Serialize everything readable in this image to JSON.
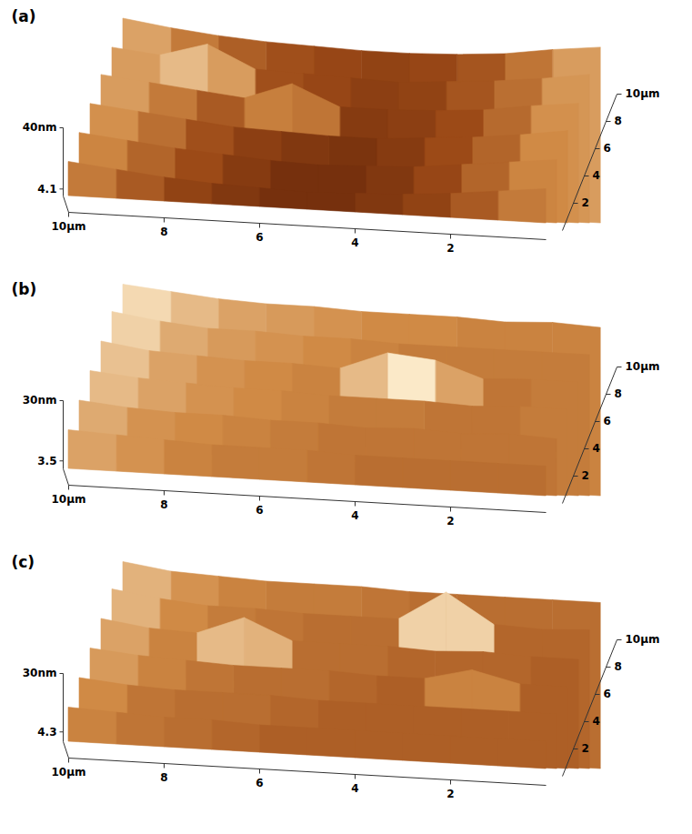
{
  "chart_data": [
    {
      "type": "surface",
      "title": "(a)",
      "x": [
        0,
        1,
        2,
        3,
        4,
        5,
        6,
        7,
        8,
        9,
        10
      ],
      "y": [
        0,
        2,
        4,
        6,
        8,
        10
      ],
      "z": [
        [
          20,
          17,
          14,
          12,
          11,
          10,
          11,
          12,
          14,
          17,
          20
        ],
        [
          21,
          18,
          15,
          12,
          11,
          10,
          11,
          13,
          15,
          18,
          21
        ],
        [
          22,
          18,
          15,
          13,
          11,
          11,
          12,
          13,
          16,
          19,
          22
        ],
        [
          22,
          19,
          15,
          13,
          12,
          12,
          24,
          14,
          17,
          20,
          23
        ],
        [
          23,
          19,
          16,
          14,
          12,
          13,
          14,
          15,
          28,
          20,
          23
        ],
        [
          23,
          20,
          16,
          14,
          13,
          13,
          14,
          15,
          17,
          20,
          24
        ]
      ],
      "xlim": [
        0,
        10
      ],
      "ylim": [
        0,
        10
      ],
      "zlim": [
        0,
        40
      ],
      "xticks": [
        2,
        4,
        6,
        8,
        {
          "value": 10,
          "label": "10µm"
        }
      ],
      "yticks": [
        2,
        4,
        6,
        8,
        {
          "value": 10,
          "label": "10µm"
        }
      ],
      "zticks": [
        4.1,
        {
          "value": 40,
          "label": "40nm"
        }
      ]
    },
    {
      "type": "surface",
      "title": "(b)",
      "x": [
        0,
        1,
        2,
        3,
        4,
        5,
        6,
        7,
        8,
        9,
        10
      ],
      "y": [
        0,
        2,
        4,
        6,
        8,
        10
      ],
      "z": [
        [
          13,
          13,
          13,
          13,
          13,
          14,
          14,
          14,
          15,
          16,
          17
        ],
        [
          13,
          14,
          13,
          14,
          13,
          14,
          14,
          15,
          15,
          16,
          18
        ],
        [
          14,
          14,
          13,
          14,
          14,
          14,
          15,
          15,
          16,
          17,
          19
        ],
        [
          14,
          14,
          13,
          20,
          22,
          14,
          15,
          15,
          16,
          17,
          20
        ],
        [
          14,
          14,
          14,
          14,
          14,
          15,
          15,
          16,
          16,
          18,
          21
        ],
        [
          14,
          15,
          14,
          15,
          15,
          15,
          16,
          16,
          17,
          19,
          21
        ]
      ],
      "xlim": [
        0,
        10
      ],
      "ylim": [
        0,
        10
      ],
      "zlim": [
        0,
        30
      ],
      "xticks": [
        2,
        4,
        6,
        8,
        {
          "value": 10,
          "label": "10µm"
        }
      ],
      "yticks": [
        2,
        4,
        6,
        8,
        {
          "value": 10,
          "label": "10µm"
        }
      ],
      "zticks": [
        3.5,
        {
          "value": 30,
          "label": "30nm"
        }
      ]
    },
    {
      "type": "surface",
      "title": "(c)",
      "x": [
        0,
        1,
        2,
        3,
        4,
        5,
        6,
        7,
        8,
        9,
        10
      ],
      "y": [
        0,
        2,
        4,
        6,
        8,
        10
      ],
      "z": [
        [
          12,
          12,
          12,
          12,
          12,
          12,
          12,
          13,
          13,
          14,
          15
        ],
        [
          12,
          12,
          12,
          12,
          12,
          12,
          13,
          13,
          13,
          14,
          16
        ],
        [
          12,
          12,
          17,
          12,
          12,
          13,
          13,
          13,
          14,
          15,
          17
        ],
        [
          12,
          12,
          13,
          12,
          13,
          13,
          13,
          22,
          14,
          15,
          18
        ],
        [
          13,
          12,
          13,
          26,
          13,
          13,
          13,
          14,
          14,
          16,
          19
        ],
        [
          13,
          13,
          13,
          13,
          13,
          14,
          14,
          14,
          15,
          16,
          19
        ]
      ],
      "xlim": [
        0,
        10
      ],
      "ylim": [
        0,
        10
      ],
      "zlim": [
        0,
        30
      ],
      "xticks": [
        2,
        4,
        6,
        8,
        {
          "value": 10,
          "label": "10µm"
        }
      ],
      "yticks": [
        2,
        4,
        6,
        8,
        {
          "value": 10,
          "label": "10µm"
        }
      ],
      "zticks": [
        4.3,
        {
          "value": 30,
          "label": "30nm"
        }
      ]
    }
  ]
}
